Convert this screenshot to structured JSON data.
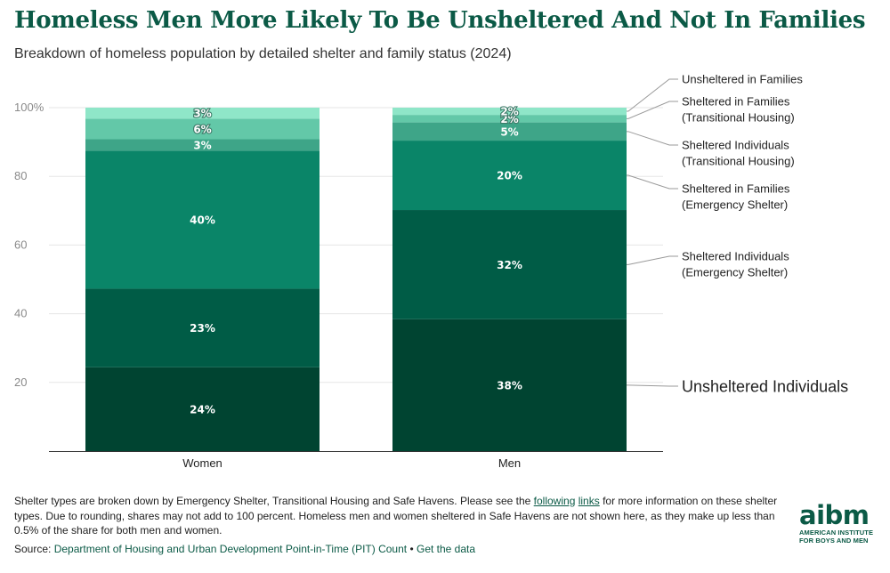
{
  "title": "Homeless Men More Likely To Be Unsheltered And Not In Families",
  "subtitle": "Breakdown of homeless population by detailed shelter and family status (2024)",
  "chart_data": {
    "type": "bar",
    "stacked": true,
    "categories": [
      "Women",
      "Men"
    ],
    "ylim": [
      0,
      100
    ],
    "yticks": [
      {
        "value": 20,
        "label": "20"
      },
      {
        "value": 40,
        "label": "40"
      },
      {
        "value": 60,
        "label": "60"
      },
      {
        "value": 80,
        "label": "80"
      },
      {
        "value": 100,
        "label": "100%"
      }
    ],
    "series": [
      {
        "name": "Unsheltered Individuals",
        "values": [
          24.4,
          38.4
        ],
        "labels": [
          "24%",
          "38%"
        ],
        "color": "#004431"
      },
      {
        "name": "Sheltered Individuals (Emergency Shelter)",
        "values": [
          22.9,
          31.8
        ],
        "labels": [
          "23%",
          "32%"
        ],
        "color": "#005c46"
      },
      {
        "name": "Sheltered in Families (Emergency Shelter)",
        "values": [
          40.2,
          20.2
        ],
        "labels": [
          "40%",
          "20%"
        ],
        "color": "#0a8568"
      },
      {
        "name": "Sheltered Individuals (Transitional Housing)",
        "values": [
          3.3,
          5.3
        ],
        "labels": [
          "3%",
          "5%"
        ],
        "color": "#3ea588"
      },
      {
        "name": "Sheltered in Families (Transitional Housing)",
        "values": [
          6.0,
          2.2
        ],
        "labels": [
          "6%",
          "2%"
        ],
        "color": "#63c8a8"
      },
      {
        "name": "Unsheltered in Families",
        "values": [
          3.2,
          2.1
        ],
        "labels": [
          "3%",
          "2%"
        ],
        "color": "#8fe6c8"
      }
    ],
    "legend": [
      {
        "text": "Unsheltered in Families"
      },
      {
        "text": "Sheltered in Families (Transitional Housing)"
      },
      {
        "text": "Sheltered Individuals (Transitional Housing)"
      },
      {
        "text": "Sheltered in Families (Emergency Shelter)"
      },
      {
        "text": "Sheltered Individuals (Emergency Shelter)"
      },
      {
        "text": "Unsheltered Individuals"
      }
    ]
  },
  "notes": {
    "text_1": "Shelter types are broken down by Emergency Shelter, Transitional Housing and Safe Havens. Please see the ",
    "link_1": "following",
    "text_2": " ",
    "link_2": "links",
    "text_3": " for more information on these shelter types. Due to rounding, shares may not add to 100 percent. Homeless men and women sheltered in Safe Havens are not shown here, as they make up less than 0.5% of the share for both men and women."
  },
  "source": {
    "label": "Source: ",
    "link": "Department of Housing and Urban Development Point-in-Time (PIT) Count",
    "separator": " • ",
    "data_link": "Get the data"
  },
  "logo": {
    "mark": "aibm",
    "line1": "AMERICAN INSTITUTE",
    "line2": "FOR BOYS AND MEN"
  }
}
